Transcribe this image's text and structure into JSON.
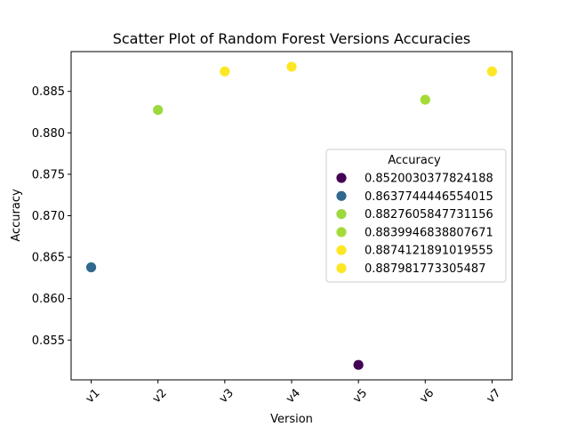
{
  "chart_data": {
    "type": "scatter",
    "title": "Scatter Plot of Random Forest Versions Accuracies",
    "xlabel": "Version",
    "ylabel": "Accuracy",
    "categories": [
      "v1",
      "v2",
      "v3",
      "v4",
      "v5",
      "v6",
      "v7"
    ],
    "points": [
      {
        "x": "v1",
        "y": 0.8637744446554015,
        "color": "#31688e"
      },
      {
        "x": "v2",
        "y": 0.8827605847731156,
        "color": "#9bd93c"
      },
      {
        "x": "v3",
        "y": 0.8874121891019555,
        "color": "#fde725"
      },
      {
        "x": "v4",
        "y": 0.887981773305487,
        "color": "#fde725"
      },
      {
        "x": "v5",
        "y": 0.8520030377824188,
        "color": "#440154"
      },
      {
        "x": "v6",
        "y": 0.8839946838807671,
        "color": "#a5db36"
      },
      {
        "x": "v7",
        "y": 0.8874121891019555,
        "color": "#fde725"
      }
    ],
    "ylim": [
      0.8502,
      0.8898
    ],
    "yticks": [
      0.855,
      0.86,
      0.865,
      0.87,
      0.875,
      0.88,
      0.885
    ],
    "ytick_labels": [
      "0.855",
      "0.860",
      "0.865",
      "0.870",
      "0.875",
      "0.880",
      "0.885"
    ],
    "grid": false,
    "legend": {
      "title": "Accuracy",
      "placement": "center-right",
      "entries": [
        {
          "label": "0.8520030377824188",
          "color": "#440154"
        },
        {
          "label": "0.8637744446554015",
          "color": "#31688e"
        },
        {
          "label": "0.8827605847731156",
          "color": "#9bd93c"
        },
        {
          "label": "0.8839946838807671",
          "color": "#a5db36"
        },
        {
          "label": "0.8874121891019555",
          "color": "#fde725"
        },
        {
          "label": "0.887981773305487",
          "color": "#fde725"
        }
      ]
    }
  }
}
